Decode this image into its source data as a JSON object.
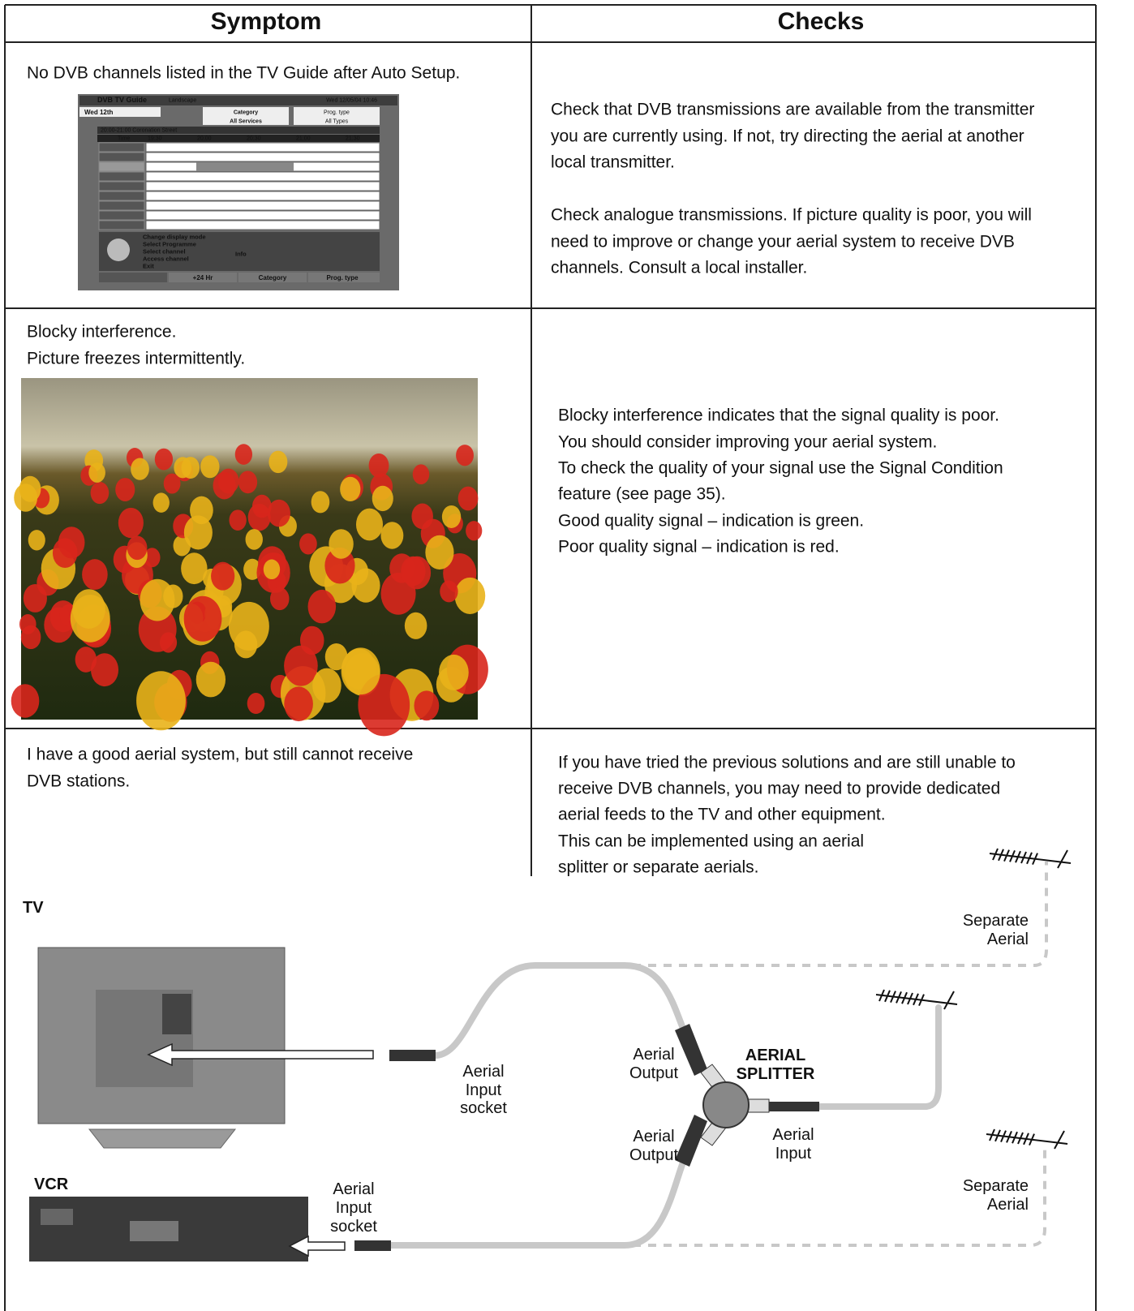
{
  "table": {
    "headers": [
      "Symptom",
      "Checks"
    ],
    "rows": [
      {
        "symptom": [
          "No DVB channels listed in the TV Guide after Auto Setup."
        ],
        "checks": [
          "Check that DVB transmissions are available from the transmitter",
          "you are currently using. If not, try directing the aerial at another",
          "local transmitter.",
          "Check analogue transmissions. If picture quality is poor, you will",
          "need to improve or change your aerial system to receive DVB",
          "channels. Consult a local installer."
        ]
      },
      {
        "symptom": [
          "Blocky interference.",
          "Picture freezes intermittently."
        ],
        "checks": [
          "Blocky interference indicates that the signal quality is poor.",
          "You should consider improving your aerial system.",
          "To check the quality of your signal use the Signal Condition",
          "feature (see page 35).",
          "Good quality signal – indication is green.",
          "Poor quality signal – indication is red."
        ]
      },
      {
        "symptom": [
          "I have a good aerial system, but still cannot receive",
          "DVB stations."
        ],
        "checks": [
          "If you have tried the previous solutions and are still unable to",
          "receive DVB channels, you may need to provide dedicated",
          "aerial feeds to the TV and other equipment.",
          "This can be implemented using an aerial",
          "splitter or separate aerials."
        ]
      }
    ]
  },
  "tv_guide": {
    "title": "DVB TV Guide",
    "mode": "Landscape",
    "datetime": "Wed 12/05/04 10:46",
    "day": "Wed 12th",
    "category_label": "Category",
    "category_value": "All Services",
    "type_label": "Prog. type",
    "type_value": "All Types",
    "programme": "20:00-21:00 Coronation Street",
    "time_label": "Time",
    "times": [
      "19:30",
      "20:00",
      "20:30",
      "21:00",
      "21:30"
    ],
    "help": [
      "Change display mode",
      "Select Programme",
      "Select channel",
      "Access channel",
      "Exit"
    ],
    "info": "Info",
    "buttons": [
      "+24 Hr",
      "Category",
      "Prog. type"
    ]
  },
  "diagram": {
    "tv": "TV",
    "vcr": "VCR",
    "tv_input": [
      "Aerial",
      "Input",
      "socket"
    ],
    "vcr_input": [
      "Aerial",
      "Input",
      "socket"
    ],
    "output_top": [
      "Aerial",
      "Output"
    ],
    "output_bottom": [
      "Aerial",
      "Output"
    ],
    "splitter": [
      "AERIAL",
      "SPLITTER"
    ],
    "splitter_input": [
      "Aerial",
      "Input"
    ],
    "separate_top": [
      "Separate",
      "Aerial"
    ],
    "separate_bottom": [
      "Separate",
      "Aerial"
    ]
  }
}
